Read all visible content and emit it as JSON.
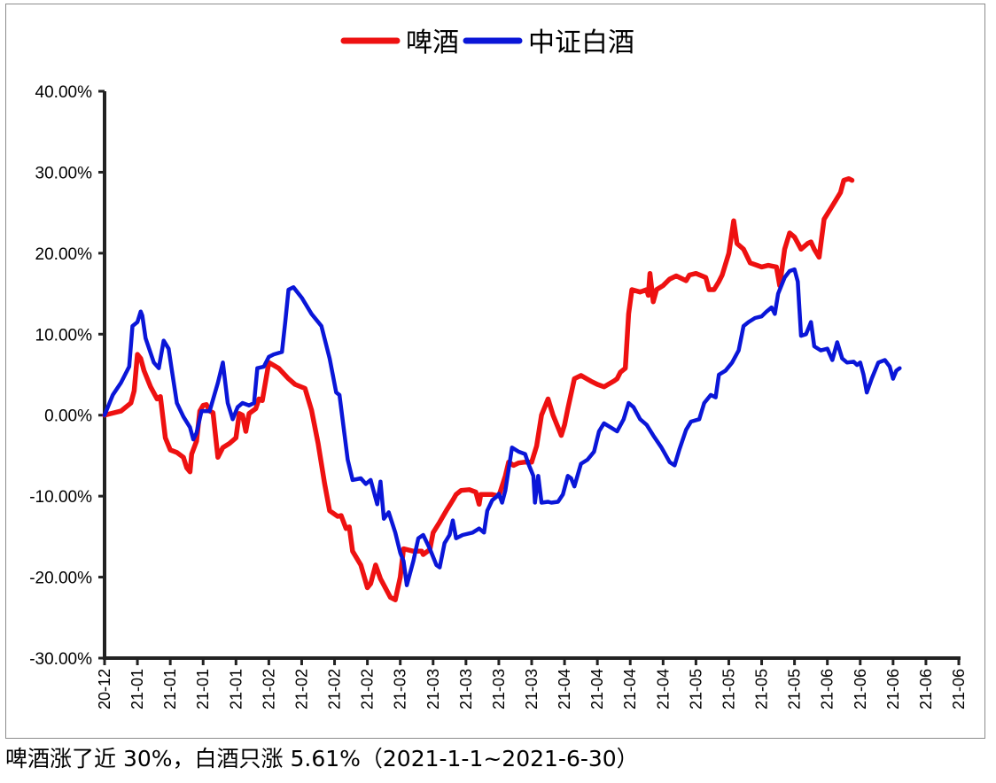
{
  "caption": "啤酒涨了近 30%，白酒只涨 5.61%（2021-1-1~2021-6-30）",
  "chart_data": {
    "type": "line",
    "title": "",
    "xlabel": "",
    "ylabel": "",
    "ylim": [
      -30,
      40
    ],
    "y_ticks": [
      -30,
      -20,
      -10,
      0,
      10,
      20,
      30,
      40
    ],
    "y_tick_labels": [
      "-30.00%",
      "-20.00%",
      "-10.00%",
      "0.00%",
      "10.00%",
      "20.00%",
      "30.00%",
      "40.00%"
    ],
    "x_tick_labels": [
      "20-12",
      "21-01",
      "21-01",
      "21-01",
      "21-01",
      "21-02",
      "21-02",
      "21-02",
      "21-02",
      "21-03",
      "21-03",
      "21-03",
      "21-03",
      "21-03",
      "21-04",
      "21-04",
      "21-04",
      "21-04",
      "21-05",
      "21-05",
      "21-05",
      "21-05",
      "21-06",
      "21-06",
      "21-06",
      "21-06",
      "21-06"
    ],
    "legend_position": "top",
    "grid": false,
    "series": [
      {
        "name": "啤酒",
        "color": "#ee1111",
        "points": [
          [
            0,
            0
          ],
          [
            0.5,
            0.5
          ],
          [
            0.8,
            1.5
          ],
          [
            0.9,
            3
          ],
          [
            1.0,
            7.5
          ],
          [
            1.1,
            7
          ],
          [
            1.2,
            5.5
          ],
          [
            1.4,
            3.5
          ],
          [
            1.6,
            2
          ],
          [
            1.7,
            2.3
          ],
          [
            1.85,
            -2.8
          ],
          [
            2.0,
            -4.3
          ],
          [
            2.2,
            -4.6
          ],
          [
            2.4,
            -5.2
          ],
          [
            2.5,
            -6.5
          ],
          [
            2.6,
            -7
          ],
          [
            2.65,
            -4.8
          ],
          [
            2.8,
            -3.2
          ],
          [
            2.9,
            0.5
          ],
          [
            3.0,
            1.2
          ],
          [
            3.1,
            1.3
          ],
          [
            3.2,
            0.5
          ],
          [
            3.3,
            0.3
          ],
          [
            3.45,
            -5.2
          ],
          [
            3.6,
            -4
          ],
          [
            3.8,
            -3.5
          ],
          [
            4.0,
            -2.8
          ],
          [
            4.1,
            0.2
          ],
          [
            4.2,
            0
          ],
          [
            4.3,
            -2
          ],
          [
            4.4,
            0.2
          ],
          [
            4.6,
            0.8
          ],
          [
            4.7,
            2
          ],
          [
            4.8,
            1.8
          ],
          [
            5.0,
            6.5
          ],
          [
            5.3,
            5.8
          ],
          [
            5.6,
            4.5
          ],
          [
            5.8,
            3.8
          ],
          [
            6.1,
            3.3
          ],
          [
            6.3,
            0.6
          ],
          [
            6.5,
            -3.5
          ],
          [
            6.7,
            -8.5
          ],
          [
            6.85,
            -11.8
          ],
          [
            7.1,
            -12.5
          ],
          [
            7.2,
            -12.4
          ],
          [
            7.35,
            -14
          ],
          [
            7.45,
            -13.8
          ],
          [
            7.55,
            -16.8
          ],
          [
            7.8,
            -18.5
          ],
          [
            8.0,
            -21.3
          ],
          [
            8.1,
            -20.8
          ],
          [
            8.25,
            -18.5
          ],
          [
            8.4,
            -20.2
          ],
          [
            8.7,
            -22.5
          ],
          [
            8.85,
            -22.8
          ],
          [
            9.0,
            -20
          ],
          [
            9.1,
            -16.5
          ],
          [
            9.4,
            -16.8
          ],
          [
            9.65,
            -16.8
          ],
          [
            9.7,
            -17.2
          ],
          [
            9.9,
            -16.6
          ],
          [
            10.0,
            -14.5
          ],
          [
            10.2,
            -13.2
          ],
          [
            10.4,
            -11.8
          ],
          [
            10.6,
            -10.5
          ],
          [
            10.7,
            -9.8
          ],
          [
            10.85,
            -9.3
          ],
          [
            11.1,
            -9.2
          ],
          [
            11.3,
            -9.5
          ],
          [
            11.4,
            -11
          ],
          [
            11.45,
            -9.8
          ],
          [
            11.8,
            -9.8
          ],
          [
            12.0,
            -10
          ],
          [
            12.2,
            -7.5
          ],
          [
            12.3,
            -5.8
          ],
          [
            12.45,
            -6.2
          ],
          [
            12.6,
            -5.9
          ],
          [
            12.8,
            -5.8
          ],
          [
            13.0,
            -5.8
          ],
          [
            13.15,
            -3.8
          ],
          [
            13.3,
            0
          ],
          [
            13.5,
            2
          ],
          [
            13.65,
            0
          ],
          [
            13.8,
            -1.5
          ],
          [
            13.9,
            -2.5
          ],
          [
            14.0,
            -1.2
          ],
          [
            14.1,
            0.8
          ],
          [
            14.3,
            4.5
          ],
          [
            14.5,
            4.9
          ],
          [
            14.8,
            4.2
          ],
          [
            15.0,
            3.8
          ],
          [
            15.2,
            3.5
          ],
          [
            15.5,
            4.2
          ],
          [
            15.6,
            4.5
          ],
          [
            15.7,
            5.3
          ],
          [
            15.85,
            5.8
          ],
          [
            15.95,
            12.5
          ],
          [
            16.05,
            15.5
          ],
          [
            16.3,
            15.2
          ],
          [
            16.5,
            15.5
          ],
          [
            16.55,
            14.8
          ],
          [
            16.6,
            17.5
          ],
          [
            16.7,
            14
          ],
          [
            16.8,
            15.5
          ],
          [
            17.0,
            16
          ],
          [
            17.2,
            16.8
          ],
          [
            17.4,
            17.2
          ],
          [
            17.7,
            16.6
          ],
          [
            17.8,
            17.3
          ],
          [
            18.0,
            17.5
          ],
          [
            18.3,
            17
          ],
          [
            18.4,
            15.5
          ],
          [
            18.55,
            15.5
          ],
          [
            18.7,
            16.5
          ],
          [
            18.8,
            17.3
          ],
          [
            19.0,
            20
          ],
          [
            19.15,
            24
          ],
          [
            19.25,
            21.2
          ],
          [
            19.45,
            20.5
          ],
          [
            19.65,
            18.8
          ],
          [
            20.0,
            18.3
          ],
          [
            20.2,
            18.5
          ],
          [
            20.45,
            18.3
          ],
          [
            20.55,
            16
          ],
          [
            20.7,
            20.5
          ],
          [
            20.85,
            22.5
          ],
          [
            21.0,
            22
          ],
          [
            21.2,
            20.5
          ],
          [
            21.4,
            21.2
          ],
          [
            21.5,
            21.4
          ],
          [
            21.6,
            20.5
          ],
          [
            21.75,
            19.5
          ],
          [
            21.9,
            24.2
          ],
          [
            22.1,
            25.5
          ],
          [
            22.25,
            26.5
          ],
          [
            22.4,
            27.5
          ],
          [
            22.5,
            29
          ],
          [
            22.65,
            29.2
          ],
          [
            22.75,
            29
          ]
        ]
      },
      {
        "name": "中证白酒",
        "color": "#0a16d8",
        "points": [
          [
            0,
            0
          ],
          [
            0.25,
            2.5
          ],
          [
            0.5,
            4
          ],
          [
            0.75,
            6
          ],
          [
            0.85,
            11
          ],
          [
            1.0,
            11.5
          ],
          [
            1.1,
            12.8
          ],
          [
            1.15,
            12.3
          ],
          [
            1.25,
            9.5
          ],
          [
            1.5,
            6.5
          ],
          [
            1.65,
            5.8
          ],
          [
            1.8,
            9.2
          ],
          [
            1.95,
            8.2
          ],
          [
            2.05,
            5.5
          ],
          [
            2.2,
            1.5
          ],
          [
            2.4,
            -0.2
          ],
          [
            2.6,
            -1.5
          ],
          [
            2.7,
            -3
          ],
          [
            2.8,
            -2.2
          ],
          [
            2.95,
            0.5
          ],
          [
            3.2,
            0.5
          ],
          [
            3.45,
            4
          ],
          [
            3.6,
            6.5
          ],
          [
            3.75,
            1.5
          ],
          [
            3.9,
            -0.5
          ],
          [
            4.05,
            1
          ],
          [
            4.2,
            1.5
          ],
          [
            4.4,
            1.2
          ],
          [
            4.55,
            1.5
          ],
          [
            4.65,
            5.8
          ],
          [
            4.85,
            6
          ],
          [
            5.0,
            7.2
          ],
          [
            5.15,
            7.5
          ],
          [
            5.4,
            7.8
          ],
          [
            5.5,
            11.5
          ],
          [
            5.6,
            15.5
          ],
          [
            5.75,
            15.8
          ],
          [
            6.0,
            14.5
          ],
          [
            6.3,
            12.5
          ],
          [
            6.6,
            11
          ],
          [
            6.85,
            7
          ],
          [
            7.05,
            2.8
          ],
          [
            7.15,
            2.5
          ],
          [
            7.4,
            -5.5
          ],
          [
            7.55,
            -8
          ],
          [
            7.8,
            -7.8
          ],
          [
            7.95,
            -8.5
          ],
          [
            8.1,
            -8
          ],
          [
            8.3,
            -11
          ],
          [
            8.4,
            -8.2
          ],
          [
            8.5,
            -12.8
          ],
          [
            8.65,
            -12
          ],
          [
            8.85,
            -14.5
          ],
          [
            9.0,
            -17
          ],
          [
            9.1,
            -18
          ],
          [
            9.2,
            -21
          ],
          [
            9.4,
            -18
          ],
          [
            9.55,
            -15.2
          ],
          [
            9.7,
            -14.8
          ],
          [
            9.9,
            -16.5
          ],
          [
            10.1,
            -18.5
          ],
          [
            10.2,
            -18.8
          ],
          [
            10.35,
            -15.8
          ],
          [
            10.5,
            -14.8
          ],
          [
            10.6,
            -13
          ],
          [
            10.7,
            -15.2
          ],
          [
            10.9,
            -14.8
          ],
          [
            11.2,
            -14.5
          ],
          [
            11.4,
            -14
          ],
          [
            11.55,
            -14.5
          ],
          [
            11.65,
            -11.8
          ],
          [
            11.8,
            -10.5
          ],
          [
            11.95,
            -10
          ],
          [
            12.0,
            -9.7
          ],
          [
            12.1,
            -10.8
          ],
          [
            12.2,
            -9.3
          ],
          [
            12.4,
            -4
          ],
          [
            12.6,
            -4.5
          ],
          [
            12.8,
            -4.8
          ],
          [
            12.9,
            -6
          ],
          [
            13.05,
            -7.5
          ],
          [
            13.1,
            -10.8
          ],
          [
            13.2,
            -7.5
          ],
          [
            13.3,
            -10.8
          ],
          [
            13.5,
            -10.7
          ],
          [
            13.6,
            -10.8
          ],
          [
            13.8,
            -10.7
          ],
          [
            13.95,
            -9.8
          ],
          [
            14.1,
            -7.5
          ],
          [
            14.2,
            -7.8
          ],
          [
            14.3,
            -8.8
          ],
          [
            14.5,
            -6
          ],
          [
            14.7,
            -5.5
          ],
          [
            14.9,
            -4.5
          ],
          [
            15.05,
            -2
          ],
          [
            15.2,
            -1
          ],
          [
            15.4,
            -1.5
          ],
          [
            15.6,
            -2
          ],
          [
            15.8,
            -0.5
          ],
          [
            15.95,
            1.5
          ],
          [
            16.1,
            1
          ],
          [
            16.3,
            -0.5
          ],
          [
            16.5,
            -1.2
          ],
          [
            16.7,
            -2.5
          ],
          [
            16.95,
            -4
          ],
          [
            17.2,
            -5.8
          ],
          [
            17.35,
            -6.2
          ],
          [
            17.5,
            -4.2
          ],
          [
            17.7,
            -1.8
          ],
          [
            17.85,
            -0.8
          ],
          [
            18.1,
            -0.5
          ],
          [
            18.25,
            1.5
          ],
          [
            18.45,
            2.5
          ],
          [
            18.6,
            2.2
          ],
          [
            18.7,
            5
          ],
          [
            18.9,
            5.5
          ],
          [
            19.1,
            6.5
          ],
          [
            19.3,
            8
          ],
          [
            19.45,
            11
          ],
          [
            19.6,
            11.5
          ],
          [
            19.8,
            12
          ],
          [
            20.0,
            12.2
          ],
          [
            20.15,
            12.8
          ],
          [
            20.3,
            13.3
          ],
          [
            20.4,
            12.5
          ],
          [
            20.5,
            15
          ],
          [
            20.7,
            17
          ],
          [
            20.85,
            17.8
          ],
          [
            21.0,
            18
          ],
          [
            21.1,
            16.5
          ],
          [
            21.2,
            9.8
          ],
          [
            21.35,
            10
          ],
          [
            21.5,
            11.5
          ],
          [
            21.6,
            8.5
          ],
          [
            21.8,
            8
          ],
          [
            22.0,
            8.2
          ],
          [
            22.15,
            6.8
          ],
          [
            22.3,
            9
          ],
          [
            22.45,
            7
          ],
          [
            22.6,
            6.5
          ],
          [
            22.8,
            6.6
          ],
          [
            22.9,
            6.2
          ],
          [
            23.0,
            6.5
          ],
          [
            23.1,
            5
          ],
          [
            23.2,
            2.8
          ],
          [
            23.35,
            4.5
          ],
          [
            23.55,
            6.5
          ],
          [
            23.75,
            6.8
          ],
          [
            23.9,
            6
          ],
          [
            24.0,
            4.5
          ],
          [
            24.1,
            5.5
          ],
          [
            24.2,
            5.8
          ]
        ]
      }
    ]
  }
}
